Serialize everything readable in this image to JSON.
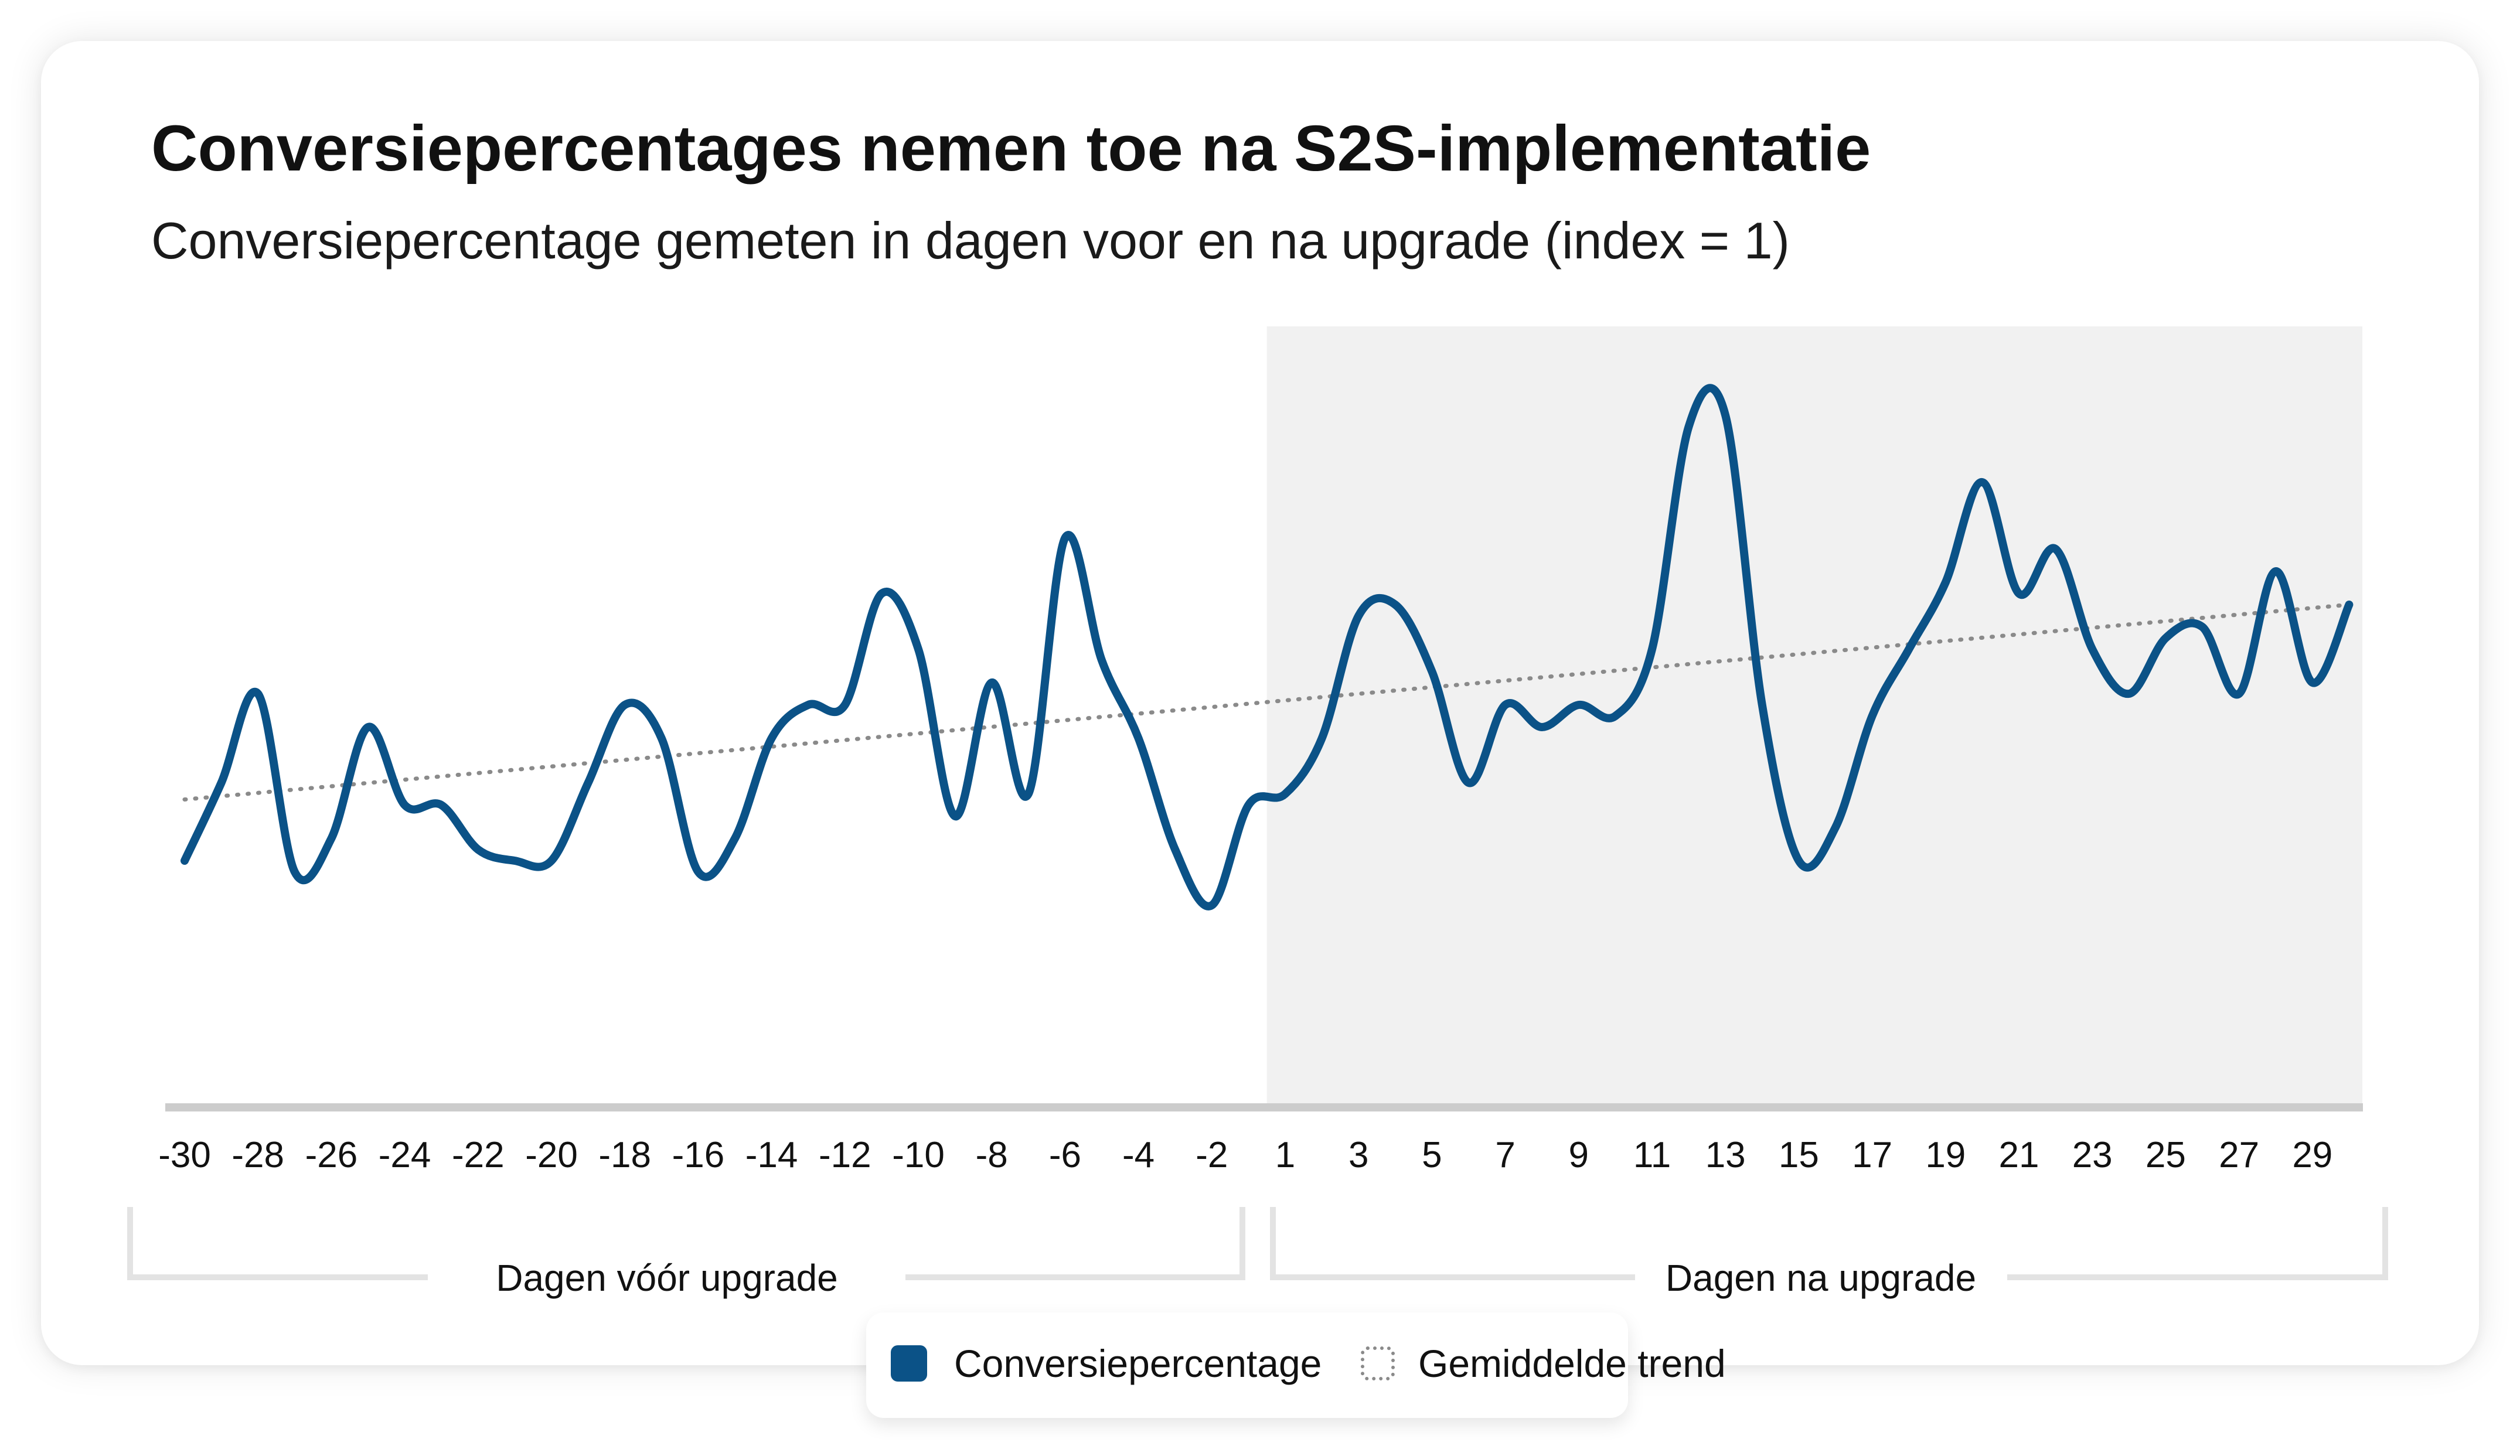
{
  "title": "Conversiepercentages nemen toe na S2S-implementatie",
  "subtitle": "Conversiepercentage gemeten in dagen voor en na upgrade (index = 1)",
  "colors": {
    "series": "#0b5287",
    "trend": "#8a8a8a",
    "shade": "#f1f1f1",
    "axis": "#cccccc",
    "bracket": "#e3e3e3"
  },
  "groups": [
    {
      "label": "Dagen vóór upgrade"
    },
    {
      "label": "Dagen na upgrade"
    }
  ],
  "legend": [
    {
      "label": "Conversiepercentage",
      "icon": "solid-square"
    },
    {
      "label": "Gemiddelde trend",
      "icon": "dotted-square"
    }
  ],
  "chart_data": {
    "type": "line",
    "title": "Conversiepercentages nemen toe na S2S-implementatie",
    "subtitle": "Conversiepercentage gemeten in dagen voor en na upgrade (index = 1)",
    "x": [
      -30,
      -29,
      -28,
      -27,
      -26,
      -25,
      -24,
      -23,
      -22,
      -21,
      -20,
      -19,
      -18,
      -17,
      -16,
      -15,
      -14,
      -13,
      -12,
      -11,
      -10,
      -9,
      -8,
      -7,
      -6,
      -5,
      -4,
      -3,
      -2,
      -1,
      1,
      2,
      3,
      4,
      5,
      6,
      7,
      8,
      9,
      10,
      11,
      12,
      13,
      14,
      15,
      16,
      17,
      18,
      19,
      20,
      21,
      22,
      23,
      24,
      25,
      26,
      27,
      28,
      29,
      30
    ],
    "x_tick_labels": [
      "-30",
      "-28",
      "-26",
      "-24",
      "-22",
      "-20",
      "-18",
      "-16",
      "-14",
      "-12",
      "-10",
      "-8",
      "-6",
      "-4",
      "-2",
      "1",
      "3",
      "5",
      "7",
      "9",
      "11",
      "13",
      "15",
      "17",
      "19",
      "21",
      "23",
      "25",
      "27",
      "29"
    ],
    "series": [
      {
        "name": "Conversiepercentage",
        "values": [
          0.92,
          0.99,
          1.07,
          0.91,
          0.94,
          1.04,
          0.97,
          0.97,
          0.93,
          0.92,
          0.92,
          0.99,
          1.06,
          1.03,
          0.91,
          0.94,
          1.03,
          1.06,
          1.06,
          1.16,
          1.11,
          0.96,
          1.08,
          0.98,
          1.21,
          1.1,
          1.03,
          0.93,
          0.88,
          0.97,
          0.98,
          1.03,
          1.14,
          1.15,
          1.09,
          0.99,
          1.06,
          1.04,
          1.06,
          1.05,
          1.11,
          1.31,
          1.32,
          1.06,
          0.92,
          0.95,
          1.05,
          1.11,
          1.17,
          1.26,
          1.16,
          1.2,
          1.11,
          1.07,
          1.12,
          1.13,
          1.07,
          1.18,
          1.08,
          1.15
        ]
      },
      {
        "name": "Gemiddelde trend",
        "style": "dotted",
        "values_endpoints": {
          "start": 0.975,
          "end": 1.15
        }
      }
    ],
    "shaded_region": {
      "from": 1,
      "to": 30
    },
    "ylim": [
      0.7,
      1.4
    ],
    "grid": false,
    "legend": "bottom-center"
  }
}
